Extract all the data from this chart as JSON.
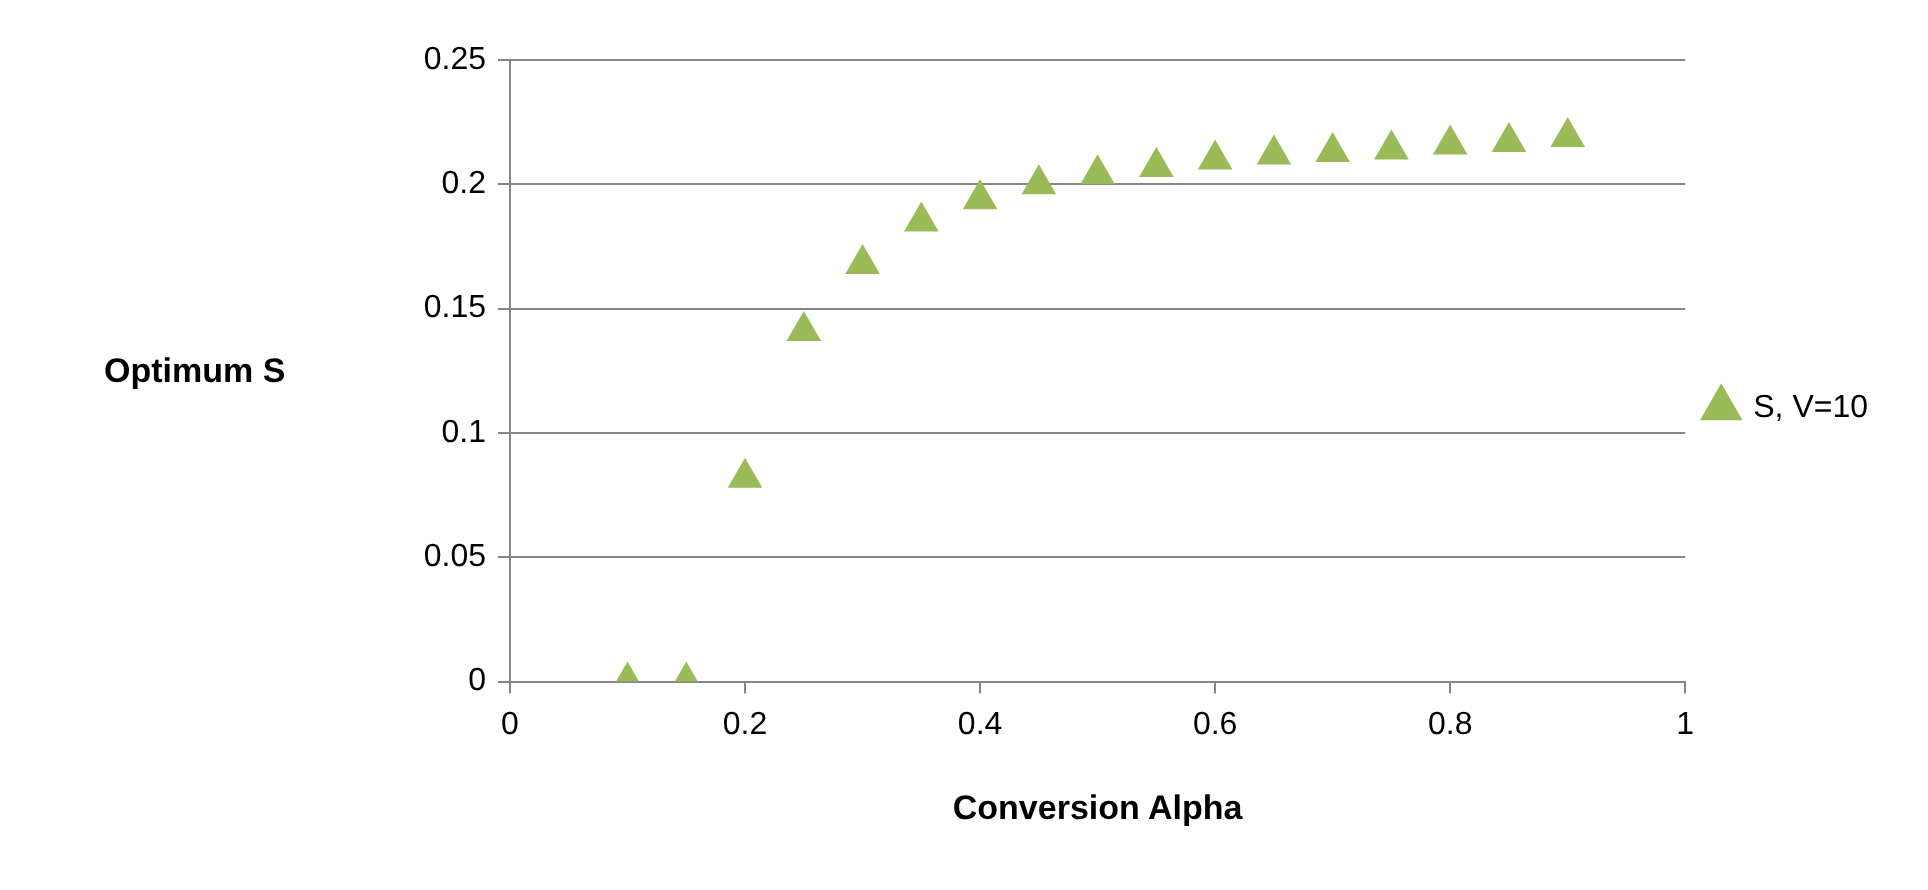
{
  "chart_data": {
    "type": "scatter",
    "xlabel": "Conversion Alpha",
    "ylabel": "Optimum S",
    "x": [
      0.1,
      0.15,
      0.2,
      0.25,
      0.3,
      0.35,
      0.4,
      0.45,
      0.5,
      0.55,
      0.6,
      0.65,
      0.7,
      0.75,
      0.8,
      0.85,
      0.9
    ],
    "series": [
      {
        "name": "S, V=10",
        "color": "#9bbb59",
        "values": [
          0,
          0,
          0.082,
          0.141,
          0.168,
          0.185,
          0.194,
          0.2,
          0.204,
          0.207,
          0.21,
          0.212,
          0.213,
          0.214,
          0.216,
          0.217,
          0.219
        ]
      }
    ],
    "xlim": [
      0,
      1
    ],
    "xticks": [
      0,
      0.2,
      0.4,
      0.6,
      0.8,
      1
    ],
    "ylim": [
      0,
      0.25
    ],
    "yticks": [
      0,
      0.05,
      0.1,
      0.15,
      0.2,
      0.25
    ],
    "grid": "y",
    "legend": "right",
    "marker": "triangle"
  }
}
